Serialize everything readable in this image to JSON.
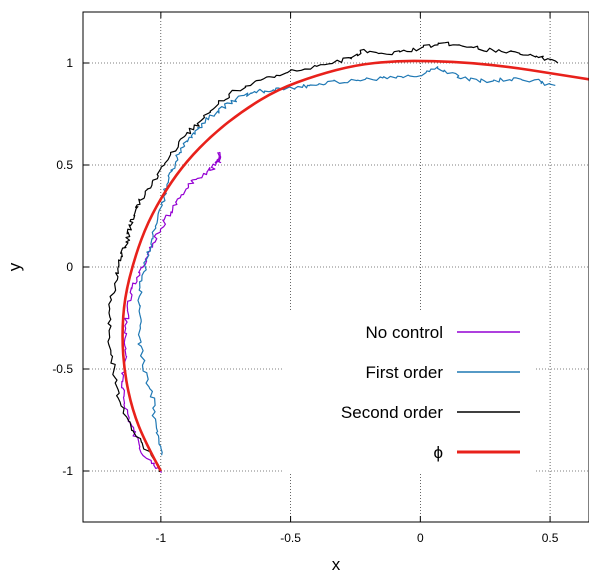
{
  "chart_data": {
    "type": "line",
    "title": "",
    "xlabel": "x",
    "ylabel": "y",
    "xlim": [
      -1.3,
      0.65
    ],
    "ylim": [
      -1.25,
      1.25
    ],
    "xticks": [
      -1,
      -0.5,
      0,
      0.5
    ],
    "yticks": [
      -1,
      -0.5,
      0,
      0.5,
      1
    ],
    "xtick_labels": [
      "-1",
      "-0.5",
      "0",
      "0.5"
    ],
    "ytick_labels": [
      "-1",
      "-0.5",
      "0",
      "0.5",
      "1"
    ],
    "grid": true,
    "legend_position": "bottom-right",
    "series": [
      {
        "name": "No control",
        "color": "#9400d3",
        "points": [
          [
            -1.0,
            -1.0
          ],
          [
            -1.06,
            -0.93
          ],
          [
            -1.1,
            -0.83
          ],
          [
            -1.13,
            -0.72
          ],
          [
            -1.15,
            -0.6
          ],
          [
            -1.14,
            -0.48
          ],
          [
            -1.14,
            -0.35
          ],
          [
            -1.13,
            -0.23
          ],
          [
            -1.11,
            -0.11
          ],
          [
            -1.08,
            -0.02
          ],
          [
            -1.04,
            0.08
          ],
          [
            -1.02,
            0.14
          ],
          [
            -0.98,
            0.24
          ],
          [
            -0.94,
            0.31
          ],
          [
            -0.9,
            0.39
          ],
          [
            -0.85,
            0.44
          ],
          [
            -0.8,
            0.49
          ],
          [
            -0.78,
            0.52
          ],
          [
            -0.77,
            0.56
          ],
          [
            -0.77,
            0.51
          ]
        ]
      },
      {
        "name": "First order",
        "color": "#1f78b4",
        "points": [
          [
            -1.0,
            -0.92
          ],
          [
            -1.02,
            -0.8
          ],
          [
            -1.03,
            -0.65
          ],
          [
            -1.06,
            -0.52
          ],
          [
            -1.08,
            -0.38
          ],
          [
            -1.08,
            -0.23
          ],
          [
            -1.08,
            -0.1
          ],
          [
            -1.05,
            0.05
          ],
          [
            -1.03,
            0.16
          ],
          [
            -1.0,
            0.28
          ],
          [
            -0.98,
            0.39
          ],
          [
            -0.96,
            0.47
          ],
          [
            -0.93,
            0.55
          ],
          [
            -0.9,
            0.62
          ],
          [
            -0.86,
            0.67
          ],
          [
            -0.81,
            0.74
          ],
          [
            -0.75,
            0.79
          ],
          [
            -0.68,
            0.84
          ],
          [
            -0.62,
            0.86
          ],
          [
            -0.55,
            0.87
          ],
          [
            -0.47,
            0.88
          ],
          [
            -0.4,
            0.9
          ],
          [
            -0.3,
            0.91
          ],
          [
            -0.2,
            0.92
          ],
          [
            -0.1,
            0.93
          ],
          [
            0.0,
            0.94
          ],
          [
            0.07,
            0.98
          ],
          [
            0.15,
            0.93
          ],
          [
            0.25,
            0.91
          ],
          [
            0.35,
            0.92
          ],
          [
            0.45,
            0.91
          ],
          [
            0.52,
            0.89
          ]
        ]
      },
      {
        "name": "Second order",
        "color": "#000000",
        "points": [
          [
            -1.0,
            -1.0
          ],
          [
            -1.05,
            -0.9
          ],
          [
            -1.12,
            -0.78
          ],
          [
            -1.16,
            -0.65
          ],
          [
            -1.18,
            -0.5
          ],
          [
            -1.2,
            -0.35
          ],
          [
            -1.2,
            -0.2
          ],
          [
            -1.17,
            -0.05
          ],
          [
            -1.16,
            0.05
          ],
          [
            -1.13,
            0.12
          ],
          [
            -1.12,
            0.2
          ],
          [
            -1.1,
            0.27
          ],
          [
            -1.08,
            0.33
          ],
          [
            -1.04,
            0.4
          ],
          [
            -0.99,
            0.5
          ],
          [
            -0.92,
            0.62
          ],
          [
            -0.86,
            0.7
          ],
          [
            -0.8,
            0.78
          ],
          [
            -0.73,
            0.85
          ],
          [
            -0.63,
            0.91
          ],
          [
            -0.52,
            0.95
          ],
          [
            -0.4,
            0.99
          ],
          [
            -0.28,
            1.02
          ],
          [
            -0.22,
            1.06
          ],
          [
            -0.1,
            1.05
          ],
          [
            0.0,
            1.07
          ],
          [
            0.08,
            1.1
          ],
          [
            0.18,
            1.08
          ],
          [
            0.28,
            1.06
          ],
          [
            0.38,
            1.05
          ],
          [
            0.46,
            1.03
          ],
          [
            0.53,
            1.0
          ]
        ]
      },
      {
        "name": "ϕ",
        "color": "#e8211b",
        "function": "y = sin(t), x = cos(t)^3 - ... analytic curve"
      }
    ]
  }
}
